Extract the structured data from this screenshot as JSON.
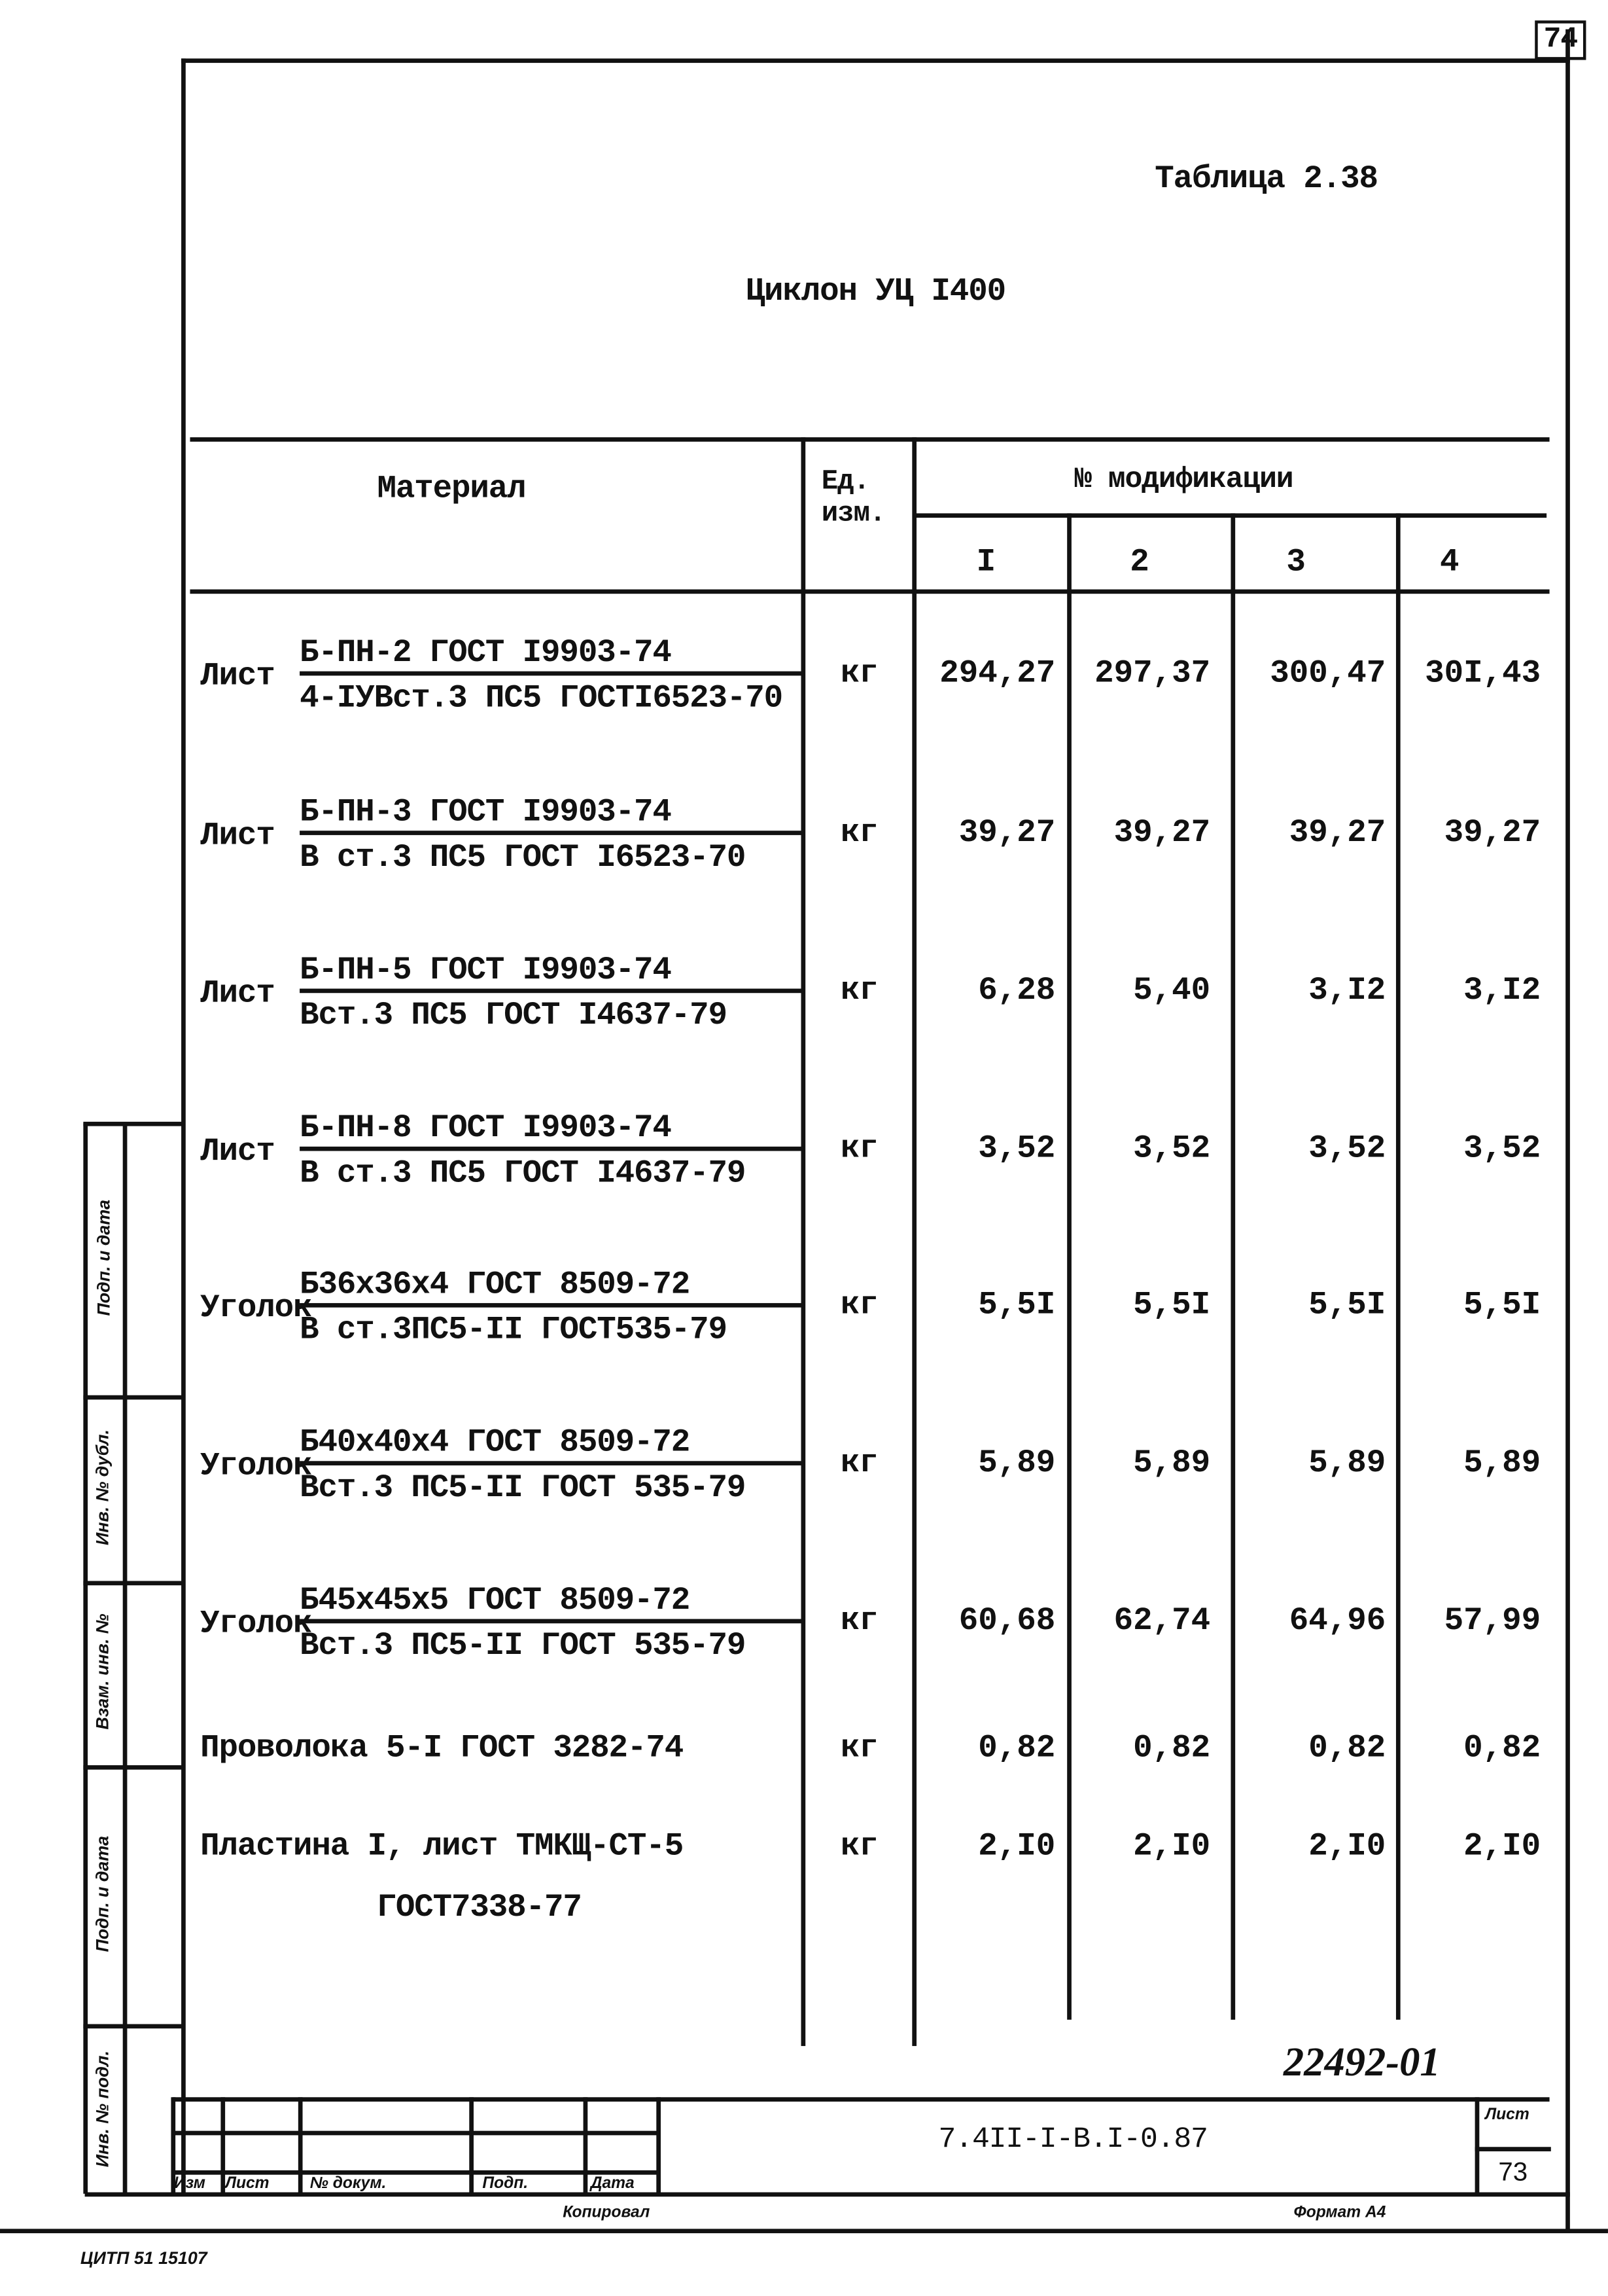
{
  "page_number": "74",
  "table_label": "Таблица 2.38",
  "table_title": "Циклон УЦ I400",
  "headers": {
    "material": "Материал",
    "unit": "Ед. изм.",
    "modifications": "№ модификации",
    "mods": [
      "I",
      "2",
      "3",
      "4"
    ]
  },
  "rows": [
    {
      "prefix": "Лист",
      "line1": "Б-ПН-2 ГОСТ I9903-74",
      "line2": "4-IУВст.3 ПС5 ГОСТI6523-70",
      "unit": "кг",
      "values": [
        "294,27",
        "297,37",
        "300,47",
        "30I,43"
      ]
    },
    {
      "prefix": "Лист",
      "line1": "Б-ПН-3 ГОСТ I9903-74",
      "line2": "В ст.3 ПС5 ГОСТ I6523-70",
      "unit": "кг",
      "values": [
        "39,27",
        "39,27",
        "39,27",
        "39,27"
      ]
    },
    {
      "prefix": "Лист",
      "line1": "Б-ПН-5 ГОСТ I9903-74",
      "line2": "Вст.3 ПС5 ГОСТ I4637-79",
      "unit": "кг",
      "values": [
        "6,28",
        "5,40",
        "3,I2",
        "3,I2"
      ]
    },
    {
      "prefix": "Лист",
      "line1": "Б-ПН-8 ГОСТ I9903-74",
      "line2": "В ст.3 ПС5 ГОСТ I4637-79",
      "unit": "кг",
      "values": [
        "3,52",
        "3,52",
        "3,52",
        "3,52"
      ]
    },
    {
      "prefix": "Уголок",
      "line1": "Б36х36х4 ГОСТ 8509-72",
      "line2": "В ст.3ПС5-II ГОСТ535-79",
      "unit": "кг",
      "values": [
        "5,5I",
        "5,5I",
        "5,5I",
        "5,5I"
      ]
    },
    {
      "prefix": "Уголок",
      "line1": "Б40х40х4 ГОСТ 8509-72",
      "line2": "Вст.3 ПС5-II ГОСТ 535-79",
      "unit": "кг",
      "values": [
        "5,89",
        "5,89",
        "5,89",
        "5,89"
      ]
    },
    {
      "prefix": "Уголок",
      "line1": "Б45х45х5 ГОСТ 8509-72",
      "line2": "Вст.3 ПС5-II ГОСТ 535-79",
      "unit": "кг",
      "values": [
        "60,68",
        "62,74",
        "64,96",
        "57,99"
      ]
    },
    {
      "prefix": "",
      "line1": "Проволока 5-I ГОСТ 3282-74",
      "line2": "",
      "unit": "кг",
      "values": [
        "0,82",
        "0,82",
        "0,82",
        "0,82"
      ]
    },
    {
      "prefix": "",
      "line1": "Пластина I, лист ТМКЩ-СТ-5",
      "line2": "ГОСТ7338-77",
      "unit": "кг",
      "values": [
        "2,I0",
        "2,I0",
        "2,I0",
        "2,I0"
      ]
    }
  ],
  "handwritten_number": "22492-01",
  "title_block": {
    "doc_code": "7.4II-I-В.I-0.87",
    "sheet_label": "Лист",
    "sheet_number": "73",
    "columns": [
      "Изм",
      "Лист",
      "№ докум.",
      "Подп.",
      "Дата"
    ]
  },
  "side_strip": [
    "Подп. и дата",
    "Инв. № дубл.",
    "Взам. инв. №",
    "Подп. и дата",
    "Инв. № подл."
  ],
  "footer": {
    "copied": "Копировал",
    "format": "Формат А4",
    "stamp": "ЦИТП 51 15107"
  }
}
